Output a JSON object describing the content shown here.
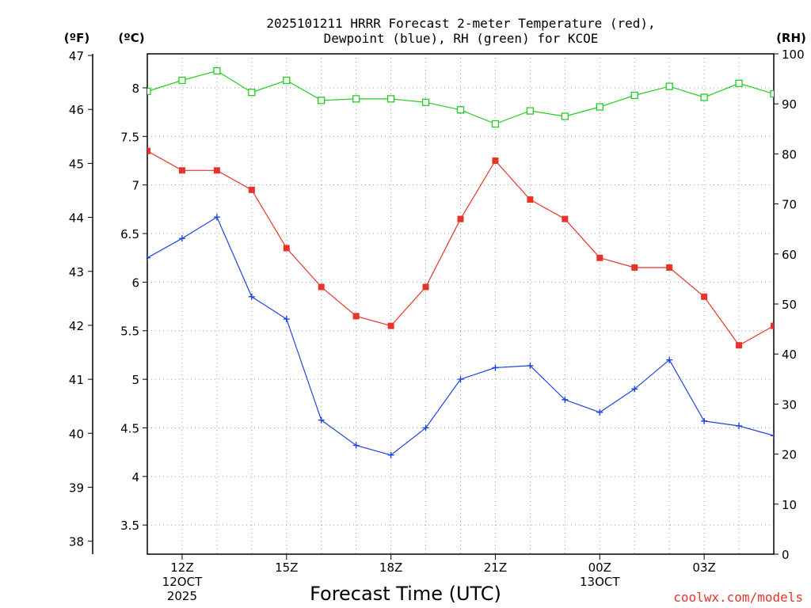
{
  "chart_data": {
    "type": "line",
    "title_line1": "2025101211 HRRR Forecast 2-meter Temperature (red),",
    "title_line2": "Dewpoint (blue), RH (green) for KCOE",
    "xlabel": "Forecast Time (UTC)",
    "credit": "coolwx.com/models",
    "units": {
      "fahrenheit": "(ºF)",
      "celsius": "(ºC)",
      "rh": "(RH)"
    },
    "x_hours": [
      11,
      12,
      13,
      14,
      15,
      16,
      17,
      18,
      19,
      20,
      21,
      22,
      23,
      24,
      25,
      26,
      27,
      28,
      29
    ],
    "xlim": [
      11,
      29
    ],
    "x_ticks": [
      {
        "hour": 12,
        "lines": [
          "12Z",
          "12OCT",
          "2025"
        ]
      },
      {
        "hour": 15,
        "lines": [
          "15Z"
        ]
      },
      {
        "hour": 18,
        "lines": [
          "18Z"
        ]
      },
      {
        "hour": 21,
        "lines": [
          "21Z"
        ]
      },
      {
        "hour": 24,
        "lines": [
          "00Z",
          "13OCT"
        ]
      },
      {
        "hour": 27,
        "lines": [
          "03Z"
        ]
      }
    ],
    "celsius_axis": {
      "ylim": [
        3.2,
        8.35
      ],
      "ticks": [
        "3.5",
        "4",
        "4.5",
        "5",
        "5.5",
        "6",
        "6.5",
        "7",
        "7.5",
        "8"
      ]
    },
    "fahrenheit_axis": {
      "ylim": [
        37.76,
        47.03
      ],
      "ticks": [
        "38",
        "39",
        "40",
        "41",
        "42",
        "43",
        "44",
        "45",
        "46",
        "47"
      ]
    },
    "rh_axis": {
      "ylim": [
        0,
        100
      ],
      "ticks": [
        "0",
        "10",
        "20",
        "30",
        "40",
        "50",
        "60",
        "70",
        "80",
        "90",
        "100"
      ]
    },
    "series": [
      {
        "name": "Temperature",
        "axis": "celsius",
        "color": "#e8332a",
        "marker": "filled-square",
        "values": [
          7.35,
          7.15,
          7.15,
          6.95,
          6.35,
          5.95,
          5.65,
          5.55,
          5.95,
          6.65,
          7.25,
          6.85,
          6.65,
          6.25,
          6.15,
          6.15,
          5.85,
          5.35,
          5.55
        ]
      },
      {
        "name": "Dewpoint",
        "axis": "celsius",
        "color": "#2244dd",
        "marker": "plus",
        "values": [
          6.25,
          6.45,
          6.67,
          5.85,
          5.62,
          4.58,
          4.32,
          4.22,
          4.5,
          5.0,
          5.12,
          5.14,
          4.79,
          4.66,
          4.9,
          5.2,
          4.57,
          4.52,
          4.42
        ]
      },
      {
        "name": "RH",
        "axis": "rh",
        "color": "#22cc22",
        "marker": "open-square",
        "values": [
          92.5,
          94.7,
          96.6,
          92.3,
          94.7,
          90.7,
          91.0,
          91.0,
          90.3,
          88.8,
          86.0,
          88.6,
          87.5,
          89.4,
          91.7,
          93.5,
          91.3,
          94.1,
          92.0
        ]
      }
    ]
  }
}
